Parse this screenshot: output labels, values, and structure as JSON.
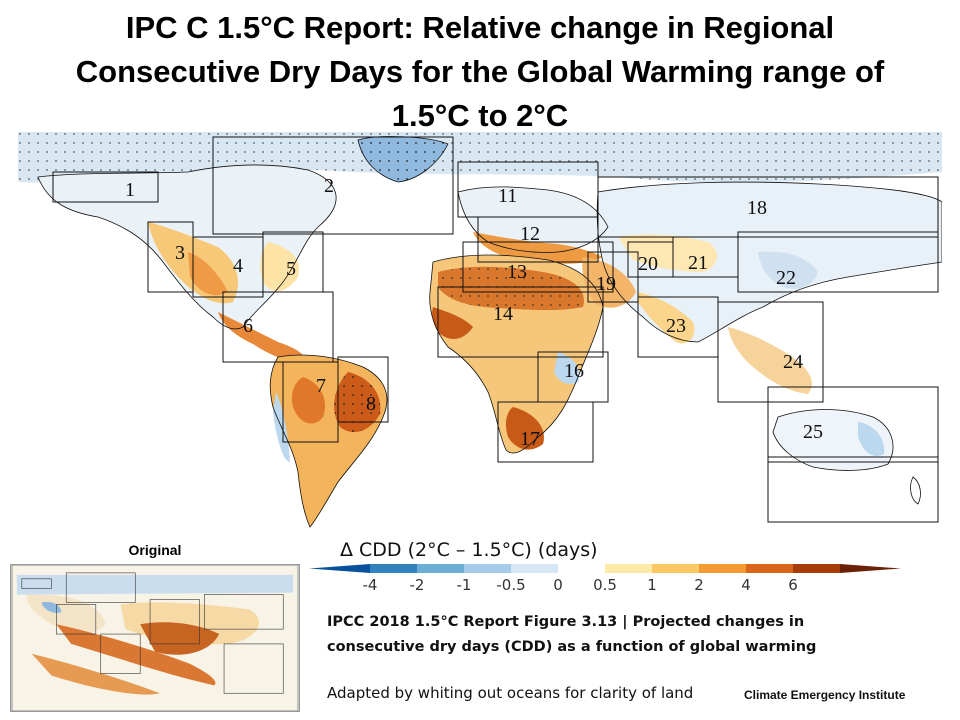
{
  "title": {
    "line1": "IPC C 1.5°C Report:  Relative change in Regional",
    "line2": "Consecutive Dry Days for the  Global Warming range of",
    "line3": "1.5°C to 2°C"
  },
  "map": {
    "ocean_color": "#ffffff",
    "region_labels": [
      "1",
      "2",
      "3",
      "4",
      "5",
      "6",
      "7",
      "8",
      "11",
      "12",
      "13",
      "14",
      "16",
      "17",
      "18",
      "19",
      "20",
      "21",
      "22",
      "23",
      "24",
      "25"
    ]
  },
  "colorbar": {
    "title": "Δ CDD  (2°C – 1.5°C) (days)",
    "ticks": [
      "-4",
      "-2",
      "-1",
      "-0.5",
      "0",
      "0.5",
      "1",
      "2",
      "4",
      "6"
    ],
    "colors": [
      "#08519c",
      "#3182bd",
      "#6baed6",
      "#a6cbe8",
      "#d6e6f4",
      "#ffffff",
      "#fde9a8",
      "#fbc864",
      "#f39a35",
      "#d9661a",
      "#a63c06",
      "#6b2106"
    ]
  },
  "inset": {
    "label": "Original"
  },
  "caption": {
    "line1": "IPCC 2018 1.5°C Report Figure 3.13 | Projected changes in",
    "line2": "consecutive dry days (CDD) as a function of global warming"
  },
  "adapted_note": "Adapted by whiting out oceans for clarity of land",
  "credit": "Climate Emergency Institute"
}
